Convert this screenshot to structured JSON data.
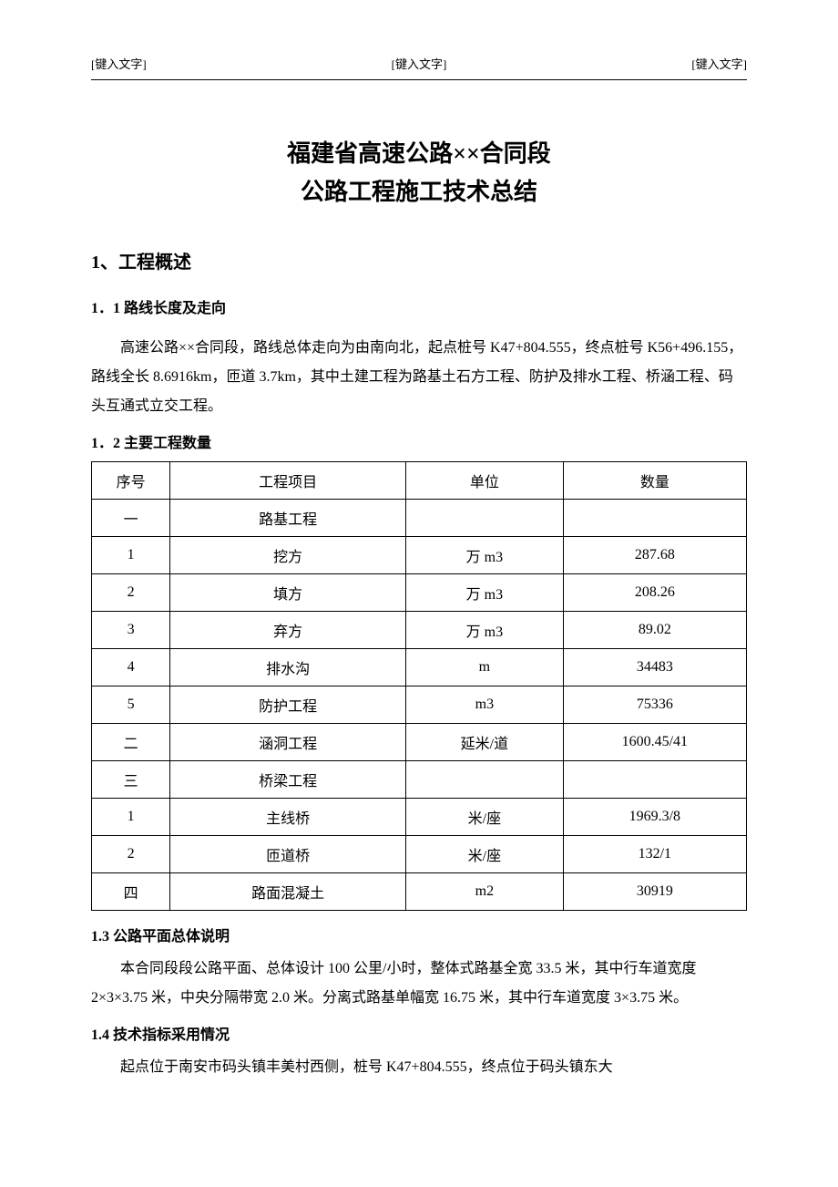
{
  "header": {
    "left": "[键入文字]",
    "center": "[键入文字]",
    "right": "[键入文字]"
  },
  "title": {
    "line1": "福建省高速公路××合同段",
    "line2": "公路工程施工技术总结"
  },
  "section1": {
    "heading": "1、工程概述",
    "sub11_heading": "1．1 路线长度及走向",
    "sub11_body": "高速公路××合同段，路线总体走向为由南向北，起点桩号 K47+804.555，终点桩号 K56+496.155，路线全长 8.6916km，匝道 3.7km，其中土建工程为路基土石方工程、防护及排水工程、桥涵工程、码头互通式立交工程。",
    "sub12_heading": "1．2 主要工程数量",
    "table": {
      "headers": [
        "序号",
        "工程项目",
        "单位",
        "数量"
      ],
      "rows": [
        [
          "一",
          "路基工程",
          "",
          ""
        ],
        [
          "1",
          "挖方",
          "万 m3",
          "287.68"
        ],
        [
          "2",
          "填方",
          "万 m3",
          "208.26"
        ],
        [
          "3",
          "弃方",
          "万 m3",
          "89.02"
        ],
        [
          "4",
          "排水沟",
          "m",
          "34483"
        ],
        [
          "5",
          "防护工程",
          "m3",
          "75336"
        ],
        [
          "二",
          "涵洞工程",
          "延米/道",
          "1600.45/41"
        ],
        [
          "三",
          "桥梁工程",
          "",
          ""
        ],
        [
          "1",
          "主线桥",
          "米/座",
          "1969.3/8"
        ],
        [
          "2",
          "匝道桥",
          "米/座",
          "132/1"
        ],
        [
          "四",
          "路面混凝土",
          "m2",
          "30919"
        ]
      ]
    },
    "sub13_heading": "1.3 公路平面总体说明",
    "sub13_body": "本合同段段公路平面、总体设计 100 公里/小时，整体式路基全宽 33.5 米，其中行车道宽度 2×3×3.75 米，中央分隔带宽 2.0 米。分离式路基单幅宽 16.75 米，其中行车道宽度 3×3.75 米。",
    "sub14_heading": "1.4 技术指标采用情况",
    "sub14_body": "起点位于南安市码头镇丰美村西侧，桩号 K47+804.555，终点位于码头镇东大"
  }
}
